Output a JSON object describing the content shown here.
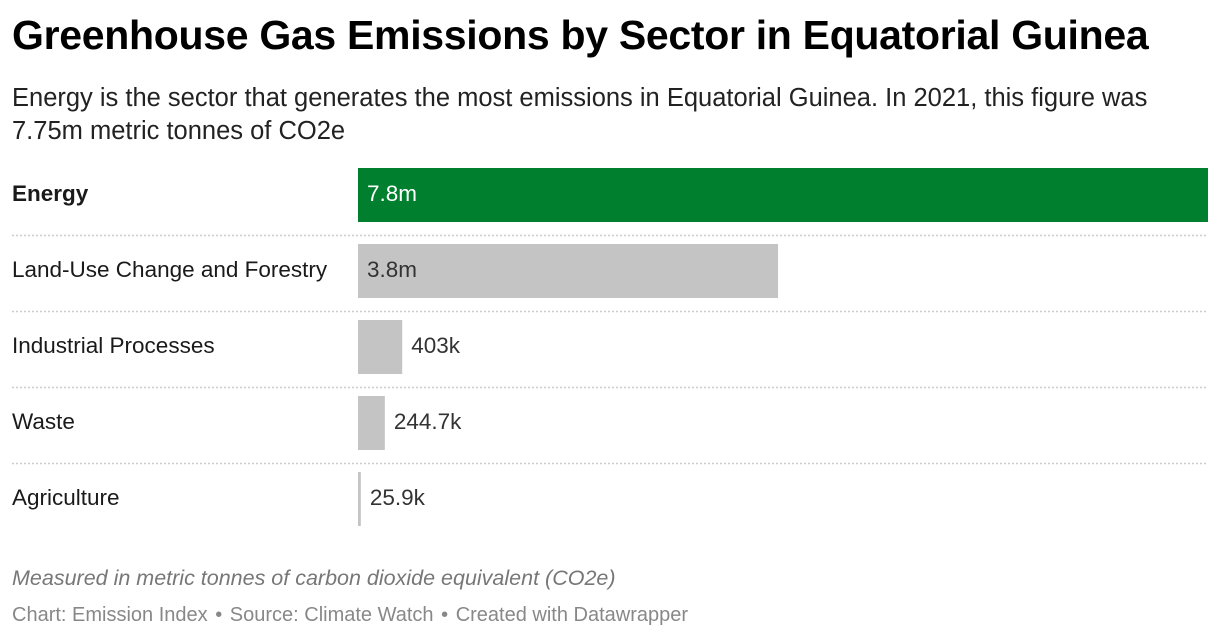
{
  "title": "Greenhouse Gas Emissions by Sector in Equatorial Guinea",
  "subtitle": "Energy is the sector that generates the most emissions in Equatorial Guinea. In 2021, this figure was 7.75m metric tonnes of CO2e",
  "note": "Measured in metric tonnes of carbon dioxide equivalent (CO2e)",
  "footer": {
    "chart_credit": "Chart: Emission Index",
    "source": "Source: Climate Watch",
    "created_with": "Created with Datawrapper",
    "separator": "•"
  },
  "colors": {
    "highlight": "#00802f",
    "default_bar": "#c4c4c4",
    "label_on_highlight": "#ffffff",
    "label_default": "#333333",
    "divider": "#cccccc"
  },
  "chart_data": {
    "type": "bar",
    "orientation": "horizontal",
    "categories": [
      "Energy",
      "Land-Use Change and Forestry",
      "Industrial Processes",
      "Waste",
      "Agriculture"
    ],
    "values": [
      7750000,
      3830000,
      403000,
      244700,
      25900
    ],
    "value_labels": [
      "7.8m",
      "3.8m",
      "403k",
      "244.7k",
      "25.9k"
    ],
    "highlight": "Energy",
    "xlim": [
      0,
      7750000
    ],
    "grid": false,
    "legend": "none"
  }
}
